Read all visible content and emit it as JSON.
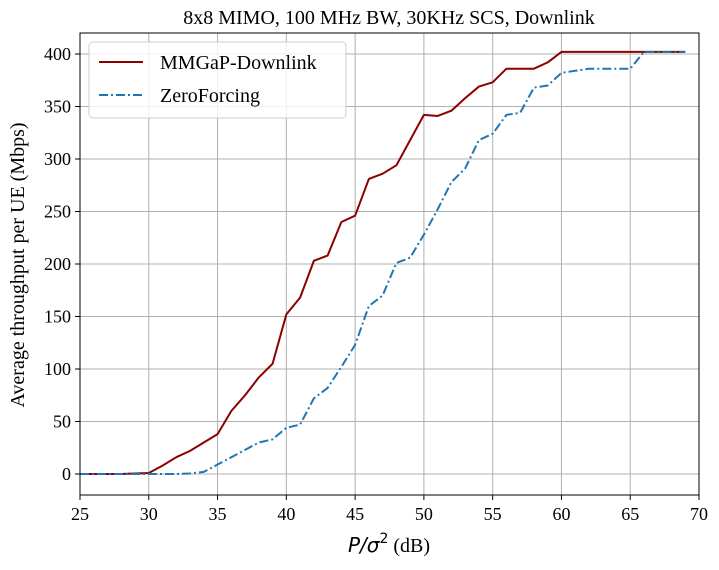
{
  "chart_data": {
    "type": "line",
    "title": "8x8 MIMO, 100 MHz BW, 30KHz SCS, Downlink",
    "xlabel_math": "P/σ",
    "xlabel_sup": "2",
    "xlabel_unit": " (dB)",
    "ylabel": "Average throughput per UE (Mbps)",
    "xlim": [
      25,
      70
    ],
    "ylim": [
      -20,
      420
    ],
    "xticks": [
      25,
      30,
      35,
      40,
      45,
      50,
      55,
      60,
      65,
      70
    ],
    "yticks": [
      0,
      50,
      100,
      150,
      200,
      250,
      300,
      350,
      400
    ],
    "grid": true,
    "legend_position": "upper-left",
    "series": [
      {
        "name": "MMGaP-Downlink",
        "color": "#8b0000",
        "dash": "solid",
        "x": [
          25,
          26,
          27,
          28,
          29,
          30,
          31,
          32,
          33,
          34,
          35,
          36,
          37,
          38,
          39,
          40,
          41,
          42,
          43,
          44,
          45,
          46,
          47,
          48,
          49,
          50,
          51,
          52,
          53,
          54,
          55,
          56,
          57,
          58,
          59,
          60,
          61,
          62,
          63,
          64,
          65,
          66,
          67,
          68,
          69
        ],
        "y": [
          0,
          0,
          0,
          0,
          0.5,
          1,
          8,
          16,
          22,
          30,
          38,
          60,
          75,
          92,
          105,
          152,
          168,
          203,
          208,
          240,
          246,
          281,
          286,
          294,
          318,
          342,
          341,
          346,
          358,
          369,
          373,
          386,
          386,
          386,
          392,
          402,
          402,
          402,
          402,
          402,
          402,
          402,
          402,
          402,
          402
        ]
      },
      {
        "name": "ZeroForcing",
        "color": "#1f77b4",
        "dash": "dashdot",
        "x": [
          25,
          26,
          27,
          28,
          29,
          30,
          31,
          32,
          33,
          34,
          35,
          36,
          37,
          38,
          39,
          40,
          41,
          42,
          43,
          44,
          45,
          46,
          47,
          48,
          49,
          50,
          51,
          52,
          53,
          54,
          55,
          56,
          57,
          58,
          59,
          60,
          61,
          62,
          63,
          64,
          65,
          66,
          67,
          68,
          69
        ],
        "y": [
          0,
          0,
          0,
          0,
          0,
          0,
          0,
          0,
          0.5,
          2,
          9,
          16,
          23,
          30,
          33,
          44,
          47,
          72,
          82,
          102,
          123,
          160,
          170,
          201,
          206,
          228,
          252,
          278,
          291,
          318,
          324,
          342,
          344,
          368,
          370,
          382,
          384,
          386,
          386,
          386,
          386,
          402,
          402,
          402,
          402
        ]
      }
    ]
  }
}
